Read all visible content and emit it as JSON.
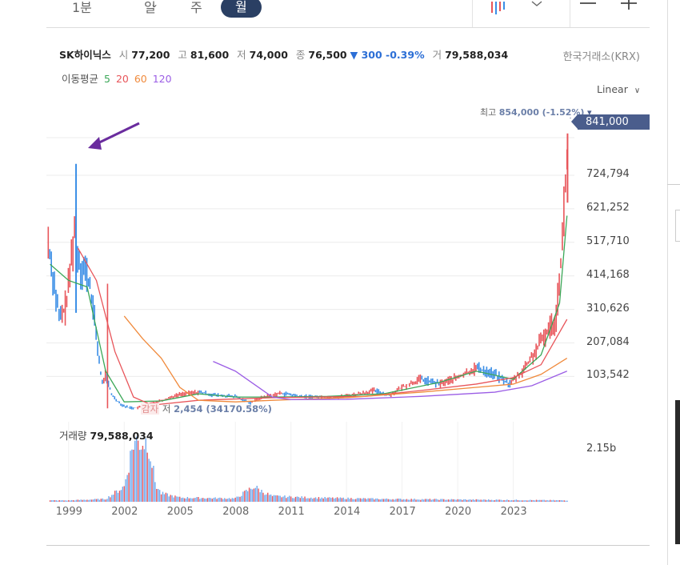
{
  "tabs": {
    "minute": "1분",
    "day": "일",
    "week": "주",
    "month": "월",
    "chevron": "⌄"
  },
  "quote": {
    "name": "SK하이닉스",
    "open_label": "시",
    "open": "77,200",
    "high_label": "고",
    "high": "81,600",
    "low_label": "저",
    "low": "74,000",
    "close_label": "종",
    "close": "76,500",
    "change": "▼ 300 -0.39%",
    "volume_label": "거",
    "volume": "79,588,034"
  },
  "exchange": "한국거래소(KRX)",
  "moving_average": {
    "label": "이동평균",
    "periods": [
      "5",
      "20",
      "60",
      "120"
    ],
    "colors": [
      "#3aa757",
      "#e8555a",
      "#f08a3c",
      "#9b5de5"
    ]
  },
  "scale_mode": "Linear",
  "current_price_label": "841,000",
  "peak_annotation": {
    "label": "최고",
    "value": "854,000 (-1.52%)",
    "marker": "▾"
  },
  "low_annotation": {
    "badge": "감자",
    "label": "저",
    "value": "2,454 (34170.58%)"
  },
  "volume_panel": {
    "label": "거래량",
    "value": "79,588,034",
    "tick": "2.15b"
  },
  "colors": {
    "up": "#e8555a",
    "down": "#3a8ee6",
    "arrow": "#6a2c9e",
    "accent": "#4a5d8c"
  },
  "chart_data": {
    "type": "line",
    "scale": "linear",
    "y_ticks": [
      "724,794",
      "621,252",
      "517,710",
      "414,168",
      "310,626",
      "207,084",
      "103,542"
    ],
    "y_tick_values": [
      724794,
      621252,
      517710,
      414168,
      310626,
      207084,
      103542
    ],
    "x_ticks": [
      "1999",
      "2002",
      "2005",
      "2008",
      "2011",
      "2014",
      "2017",
      "2020",
      "2023"
    ],
    "x_tick_years": [
      1999,
      2002,
      2005,
      2008,
      2011,
      2014,
      2017,
      2020,
      2023
    ],
    "x_range": [
      1997.8,
      2026.3
    ],
    "ylim": [
      -19000,
      920000
    ],
    "series": [
      {
        "x": [
          1997.9,
          1998.2,
          1998.5,
          1998.8,
          1999.0,
          1999.3,
          1999.6,
          1999.9,
          2000.2,
          2000.5,
          2000.8,
          2001.0,
          2001.3,
          2001.6,
          2001.9,
          2002.2,
          2002.6,
          2003.0,
          2003.5,
          2004.0,
          2005.0,
          2006.0,
          2007.0,
          2008.0,
          2008.8,
          2009.5,
          2010.5,
          2011.5,
          2012.5,
          2013.5,
          2014.5,
          2015.5,
          2016.3,
          2017.0,
          2018.0,
          2019.0,
          2020.0,
          2021.0,
          2022.0,
          2022.8,
          2023.5,
          2024.2,
          2024.8,
          2025.3,
          2025.7,
          2025.95
        ],
        "y": [
          520000,
          400000,
          280000,
          310000,
          380000,
          560000,
          450000,
          430000,
          370000,
          230000,
          80000,
          110000,
          50000,
          30000,
          15000,
          8000,
          6000,
          10000,
          22000,
          30000,
          48000,
          55000,
          45000,
          42000,
          22000,
          40000,
          52000,
          42000,
          40000,
          40000,
          48000,
          60000,
          45000,
          70000,
          95000,
          80000,
          100000,
          130000,
          110000,
          80000,
          120000,
          180000,
          240000,
          280000,
          560000,
          841000
        ]
      }
    ],
    "moving_averages": [
      {
        "period": "5",
        "x": [
          1998.0,
          1999.0,
          2000.0,
          2001.0,
          2002.0,
          2004.0,
          2006.0,
          2008.0,
          2010.0,
          2013.0,
          2016.0,
          2019.0,
          2021.0,
          2023.0,
          2024.5,
          2025.5,
          2025.9
        ],
        "y": [
          450000,
          400000,
          380000,
          120000,
          25000,
          28000,
          50000,
          40000,
          40000,
          42000,
          50000,
          85000,
          120000,
          95000,
          170000,
          330000,
          600000
        ]
      },
      {
        "period": "20",
        "x": [
          1999.5,
          2000.5,
          2001.5,
          2002.5,
          2003.5,
          2006.0,
          2010.0,
          2015.0,
          2018.0,
          2021.0,
          2023.0,
          2024.5,
          2025.9
        ],
        "y": [
          500000,
          400000,
          180000,
          40000,
          15000,
          30000,
          38000,
          42000,
          60000,
          80000,
          100000,
          140000,
          280000
        ]
      },
      {
        "period": "60",
        "x": [
          2002.0,
          2003.0,
          2004.0,
          2005.0,
          2006.0,
          2008.0,
          2010.0,
          2014.0,
          2018.0,
          2021.0,
          2023.0,
          2024.5,
          2025.9
        ],
        "y": [
          290000,
          220000,
          160000,
          70000,
          30000,
          25000,
          30000,
          38000,
          55000,
          70000,
          80000,
          110000,
          160000
        ]
      },
      {
        "period": "120",
        "x": [
          2006.8,
          2008.0,
          2009.0,
          2010.0,
          2011.0,
          2014.0,
          2018.0,
          2022.0,
          2024.0,
          2025.9
        ],
        "y": [
          150000,
          120000,
          80000,
          40000,
          32000,
          33000,
          42000,
          55000,
          75000,
          120000
        ]
      }
    ],
    "volume": {
      "x": [
        1999.0,
        2001.0,
        2002.0,
        2002.5,
        2003.0,
        2003.3,
        2003.7,
        2004.0,
        2005.0,
        2008.0,
        2009.0,
        2009.5,
        2010.0,
        2012.0,
        2016.0,
        2020.0,
        2025.9
      ],
      "y": [
        0.05,
        0.1,
        0.55,
        2.15,
        2.15,
        2.15,
        0.6,
        0.3,
        0.15,
        0.12,
        0.55,
        0.35,
        0.2,
        0.15,
        0.1,
        0.08,
        0.05
      ]
    }
  }
}
